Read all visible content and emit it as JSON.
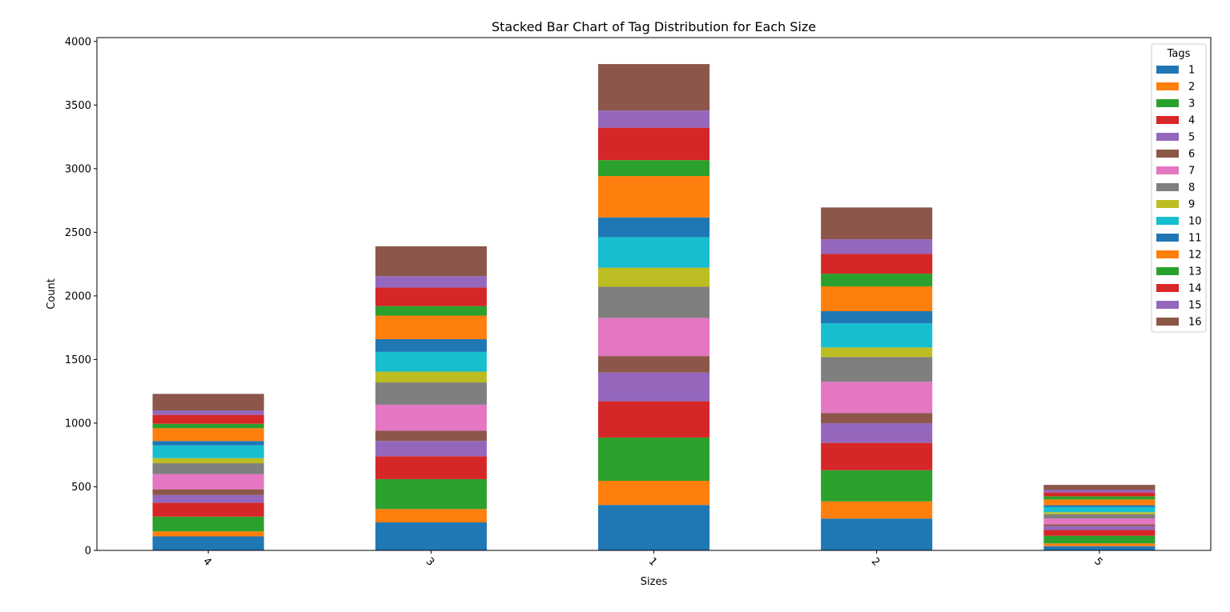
{
  "chart_data": {
    "type": "bar",
    "stacked": true,
    "title": "Stacked Bar Chart of Tag Distribution for Each Size",
    "xlabel": "Sizes",
    "ylabel": "Count",
    "categories": [
      "4",
      "3",
      "1",
      "2",
      "5"
    ],
    "ylim": [
      0,
      4030
    ],
    "yticks": [
      0,
      500,
      1000,
      1500,
      2000,
      2500,
      3000,
      3500,
      4000
    ],
    "x_tick_rotation": 45,
    "grid": false,
    "legend": {
      "title": "Tags",
      "position": "top-right"
    },
    "series": [
      {
        "name": "1",
        "color": "#1f77b4",
        "values": [
          110,
          220,
          357,
          250,
          33
        ]
      },
      {
        "name": "2",
        "color": "#ff7f0e",
        "values": [
          40,
          105,
          190,
          135,
          22
        ]
      },
      {
        "name": "3",
        "color": "#2ca02c",
        "values": [
          115,
          235,
          340,
          245,
          60
        ]
      },
      {
        "name": "4",
        "color": "#d62728",
        "values": [
          110,
          180,
          285,
          215,
          45
        ]
      },
      {
        "name": "5",
        "color": "#9467bd",
        "values": [
          60,
          120,
          225,
          155,
          30
        ]
      },
      {
        "name": "6",
        "color": "#8c564b",
        "values": [
          45,
          80,
          130,
          80,
          15
        ]
      },
      {
        "name": "7",
        "color": "#e377c2",
        "values": [
          120,
          205,
          300,
          245,
          45
        ]
      },
      {
        "name": "8",
        "color": "#7f7f7f",
        "values": [
          85,
          175,
          245,
          195,
          35
        ]
      },
      {
        "name": "9",
        "color": "#bcbd22",
        "values": [
          40,
          85,
          150,
          75,
          15
        ]
      },
      {
        "name": "10",
        "color": "#17becf",
        "values": [
          100,
          155,
          240,
          190,
          40
        ]
      },
      {
        "name": "11",
        "color": "#1f77b4",
        "values": [
          35,
          100,
          155,
          95,
          15
        ]
      },
      {
        "name": "12",
        "color": "#ff7f0e",
        "values": [
          100,
          185,
          325,
          195,
          45
        ]
      },
      {
        "name": "13",
        "color": "#2ca02c",
        "values": [
          35,
          75,
          125,
          100,
          25
        ]
      },
      {
        "name": "14",
        "color": "#d62728",
        "values": [
          70,
          145,
          255,
          155,
          30
        ]
      },
      {
        "name": "15",
        "color": "#9467bd",
        "values": [
          35,
          90,
          135,
          115,
          20
        ]
      },
      {
        "name": "16",
        "color": "#8c564b",
        "values": [
          130,
          235,
          365,
          250,
          40
        ]
      }
    ]
  }
}
